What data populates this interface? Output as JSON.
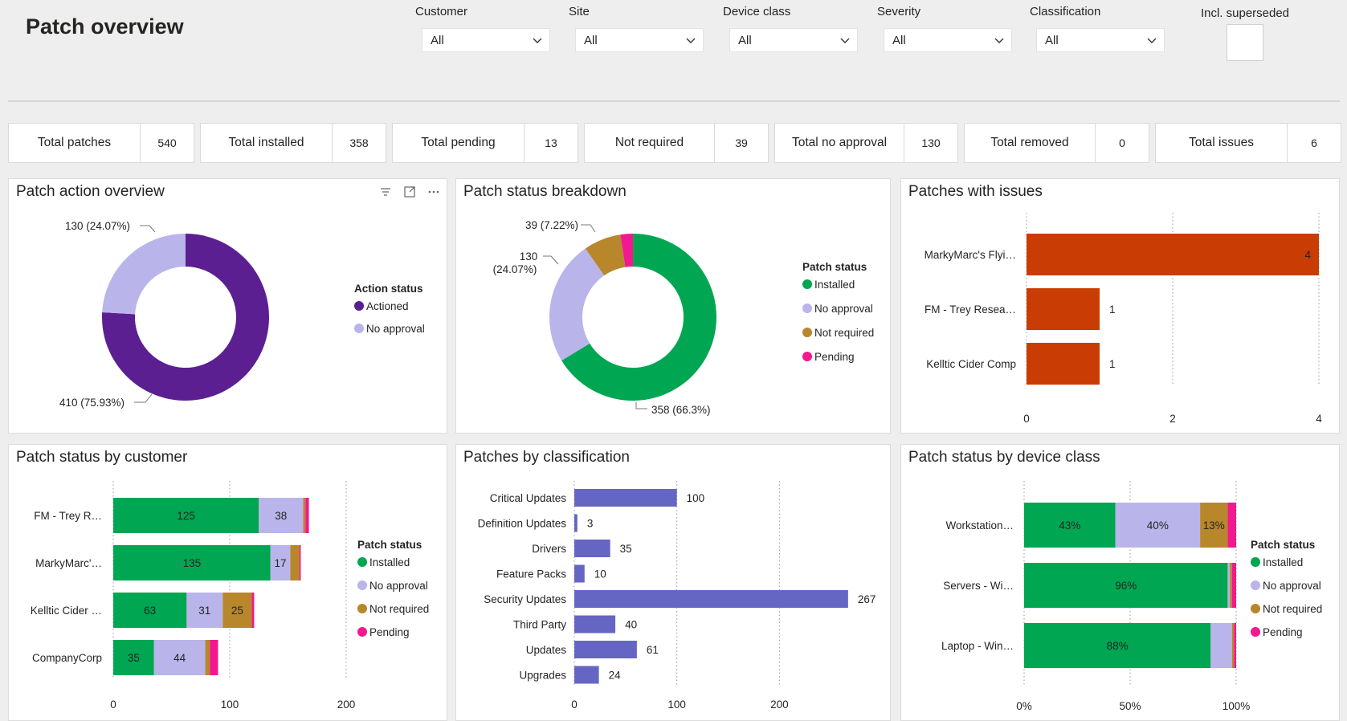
{
  "page_title": "Patch overview",
  "filters": [
    {
      "label": "Customer",
      "value": "All"
    },
    {
      "label": "Site",
      "value": "All"
    },
    {
      "label": "Device class",
      "value": "All"
    },
    {
      "label": "Severity",
      "value": "All"
    },
    {
      "label": "Classification",
      "value": "All"
    }
  ],
  "superseded_label": "Incl. superseded",
  "kpis": [
    {
      "label": "Total patches",
      "value": "540"
    },
    {
      "label": "Total installed",
      "value": "358"
    },
    {
      "label": "Total pending",
      "value": "13"
    },
    {
      "label": "Not required",
      "value": "39"
    },
    {
      "label": "Total no approval",
      "value": "130"
    },
    {
      "label": "Total removed",
      "value": "0"
    },
    {
      "label": "Total issues",
      "value": "6"
    }
  ],
  "colors": {
    "actioned": "#5c1f91",
    "no_approval": "#b9b4ea",
    "installed": "#00a651",
    "not_required": "#b8862b",
    "pending": "#f2188f",
    "issues": "#c93c03",
    "classification": "#6565c4"
  },
  "panels": {
    "action": {
      "title": "Patch action overview",
      "icons": [
        "filter-icon",
        "expand-icon",
        "more-options-icon"
      ]
    },
    "breakdown": {
      "title": "Patch status breakdown"
    },
    "issues": {
      "title": "Patches with issues"
    },
    "by_customer": {
      "title": "Patch status by customer"
    },
    "by_classification": {
      "title": "Patches by classification"
    },
    "by_device": {
      "title": "Patch status by device class"
    }
  },
  "chart_data": [
    {
      "id": "action",
      "type": "pie",
      "donut": true,
      "legend_title": "Action status",
      "slices": [
        {
          "name": "Actioned",
          "value": 410,
          "label": "410 (75.93%)",
          "color_key": "actioned"
        },
        {
          "name": "No approval",
          "value": 130,
          "label": "130 (24.07%)",
          "color_key": "no_approval"
        }
      ]
    },
    {
      "id": "breakdown",
      "type": "pie",
      "donut": true,
      "legend_title": "Patch status",
      "slices": [
        {
          "name": "Installed",
          "value": 358,
          "label": "358 (66.3%)",
          "color_key": "installed"
        },
        {
          "name": "No approval",
          "value": 130,
          "label": "130 (24.07%)",
          "color_key": "no_approval"
        },
        {
          "name": "Not required",
          "value": 39,
          "label": "39 (7.22%)",
          "color_key": "not_required"
        },
        {
          "name": "Pending",
          "value": 13,
          "label": "",
          "color_key": "pending"
        }
      ]
    },
    {
      "id": "issues",
      "type": "bar",
      "orientation": "horizontal",
      "categories": [
        "MarkyMarc's Flyi…",
        "FM - Trey Resea…",
        "Kelltic Cider Comp"
      ],
      "values": [
        4,
        1,
        1
      ],
      "xlim": [
        0,
        4
      ],
      "xticks": [
        0,
        2,
        4
      ],
      "grid": true
    },
    {
      "id": "by_customer",
      "type": "bar",
      "orientation": "horizontal",
      "stacked": true,
      "legend_title": "Patch status",
      "categories": [
        "FM - Trey R…",
        "MarkyMarc'…",
        "Kelltic Cider …",
        "CompanyCorp"
      ],
      "series": [
        {
          "name": "Installed",
          "color_key": "installed",
          "values": [
            125,
            135,
            63,
            35
          ]
        },
        {
          "name": "No approval",
          "color_key": "no_approval",
          "values": [
            38,
            17,
            31,
            44
          ]
        },
        {
          "name": "Not required",
          "color_key": "not_required",
          "values": [
            2,
            8,
            25,
            4
          ]
        },
        {
          "name": "Pending",
          "color_key": "pending",
          "values": [
            3,
            1,
            2,
            7
          ]
        }
      ],
      "xlim": [
        0,
        200
      ],
      "xticks": [
        0,
        100,
        200
      ],
      "grid": true
    },
    {
      "id": "by_classification",
      "type": "bar",
      "orientation": "horizontal",
      "categories": [
        "Critical Updates",
        "Definition Updates",
        "Drivers",
        "Feature Packs",
        "Security Updates",
        "Third Party",
        "Updates",
        "Upgrades"
      ],
      "values": [
        100,
        3,
        35,
        10,
        267,
        40,
        61,
        24
      ],
      "xlim": [
        0,
        300
      ],
      "xticks": [
        0,
        100,
        200
      ],
      "grid": true
    },
    {
      "id": "by_device",
      "type": "bar",
      "orientation": "horizontal",
      "stacked": true,
      "percent": true,
      "legend_title": "Patch status",
      "categories": [
        "Workstation…",
        "Servers - Wi…",
        "Laptop - Win…"
      ],
      "series": [
        {
          "name": "Installed",
          "color_key": "installed",
          "values": [
            43,
            96,
            88
          ],
          "labels": [
            "43%",
            "96%",
            "88%"
          ]
        },
        {
          "name": "No approval",
          "color_key": "no_approval",
          "values": [
            40,
            1,
            10
          ],
          "labels": [
            "40%",
            "",
            ""
          ]
        },
        {
          "name": "Not required",
          "color_key": "not_required",
          "values": [
            13,
            1,
            1
          ],
          "labels": [
            "13%",
            "",
            ""
          ]
        },
        {
          "name": "Pending",
          "color_key": "pending",
          "values": [
            4,
            2,
            1
          ],
          "labels": [
            "",
            "",
            ""
          ]
        }
      ],
      "xlim": [
        0,
        100
      ],
      "xticks": [
        "0%",
        "50%",
        "100%"
      ],
      "grid": true
    }
  ]
}
